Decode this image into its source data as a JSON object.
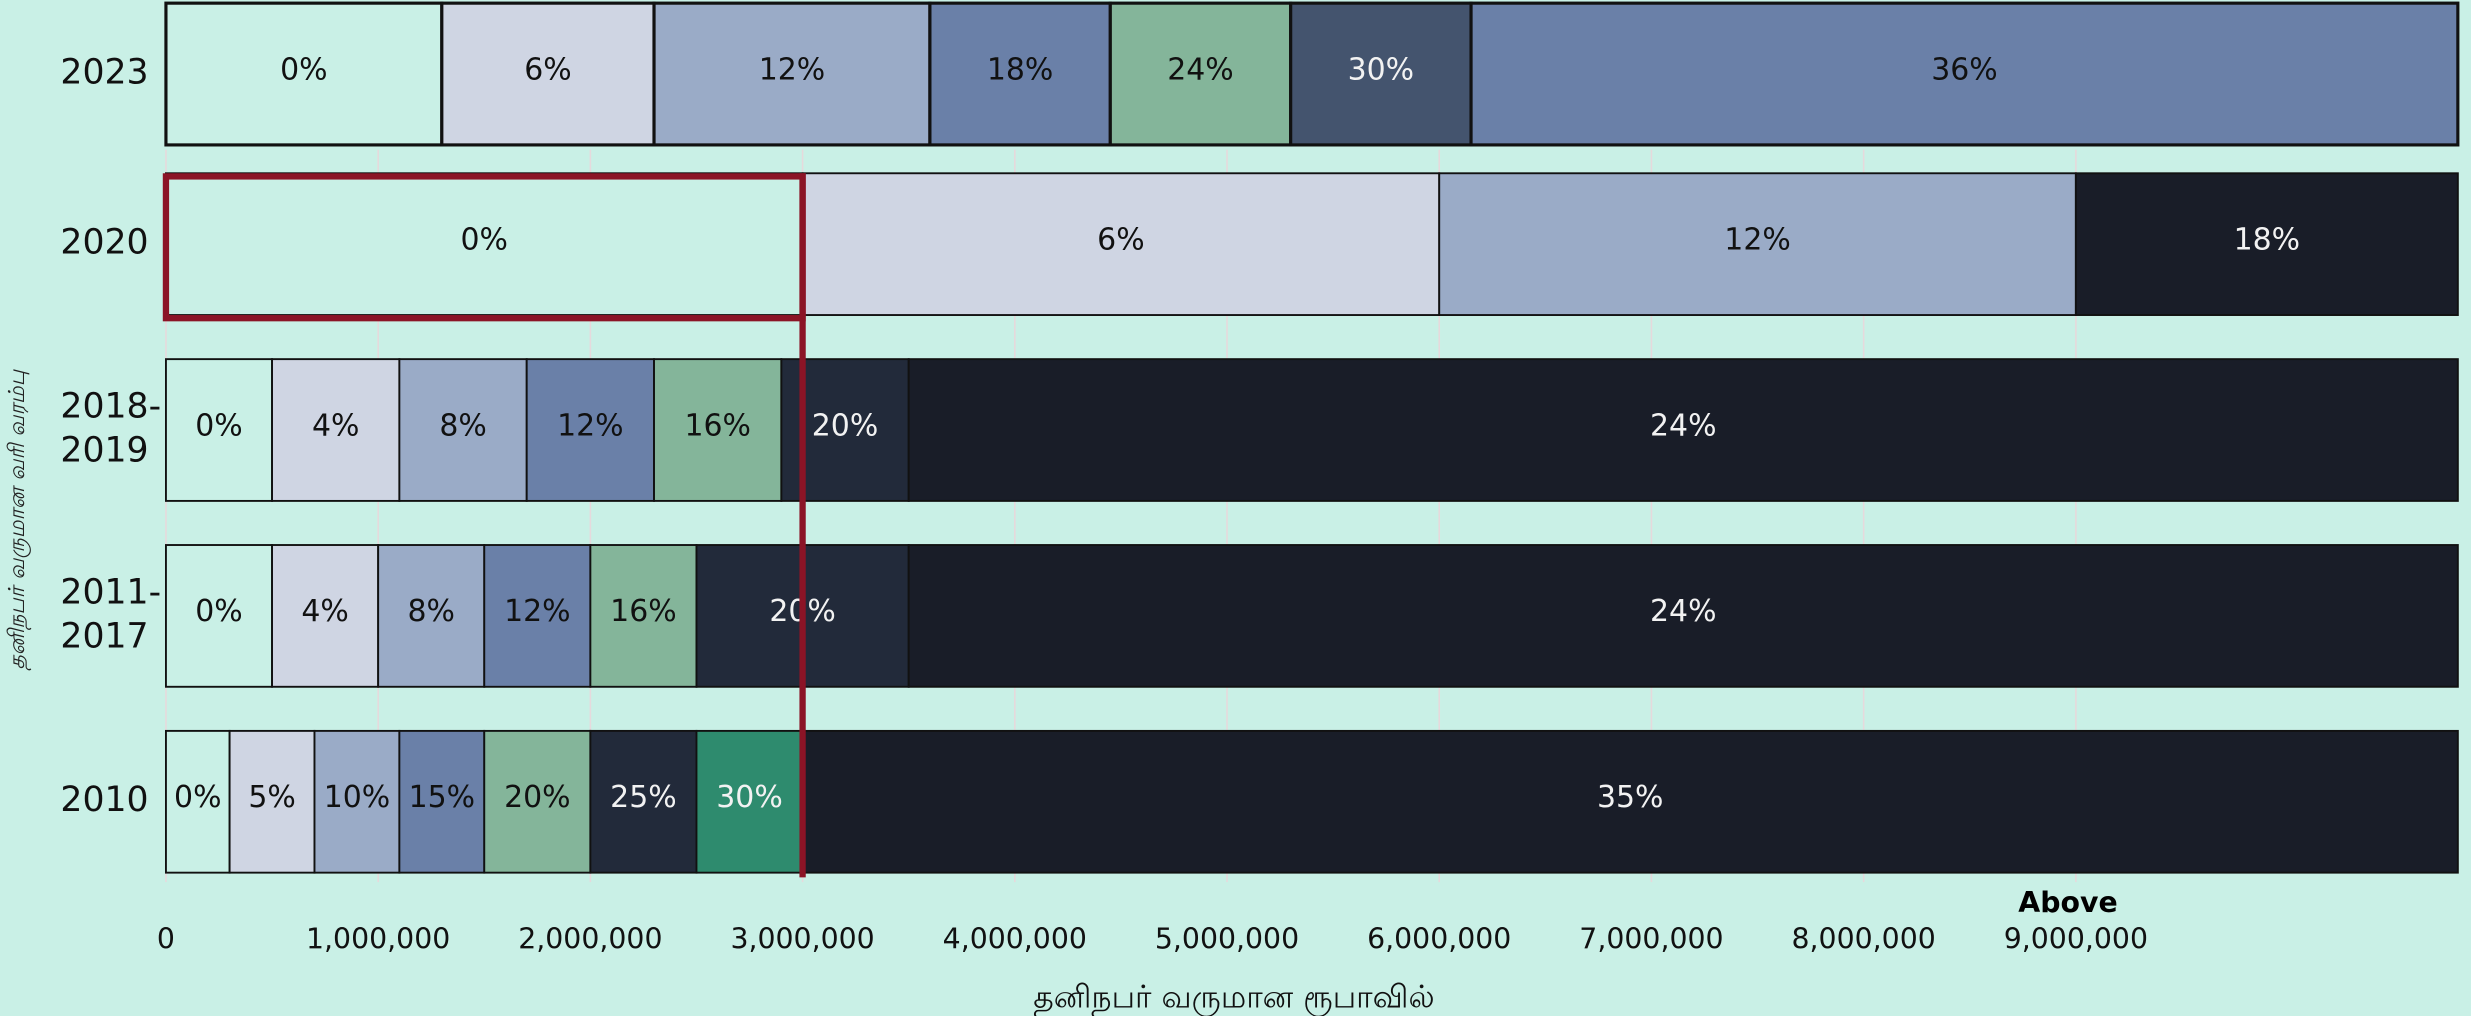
{
  "chart_data": {
    "type": "stacked_barh",
    "x_label": "தனிநபர் வருமான ரூபாவில்",
    "y_label": "தனிநபர் வருமான வரி வரம்பு",
    "categories": [
      "2023",
      "2020",
      "2018-2019",
      "2011-2017",
      "2010"
    ],
    "segments": [
      [
        {
          "label": "0%",
          "value": 1300000,
          "color": "#c9f0e6"
        },
        {
          "label": "6%",
          "value": 1000000,
          "color": "#cfd5e3"
        },
        {
          "label": "12%",
          "value": 1300000,
          "color": "#9aabc7"
        },
        {
          "label": "18%",
          "value": 850000,
          "color": "#6a80a8"
        },
        {
          "label": "24%",
          "value": 850000,
          "color": "#84b59a"
        },
        {
          "label": "30%",
          "value": 850000,
          "color": "#44546e"
        },
        {
          "label": "36%",
          "value": 4650000,
          "color": "#6a80a8"
        }
      ],
      [
        {
          "label": "0%",
          "value": 3000000,
          "color": "#c9f0e6"
        },
        {
          "label": "6%",
          "value": 3000000,
          "color": "#cfd5e3"
        },
        {
          "label": "12%",
          "value": 3000000,
          "color": "#9aabc7"
        },
        {
          "label": "18%",
          "value": 1800000,
          "color": "#191d28"
        }
      ],
      [
        {
          "label": "0%",
          "value": 500000,
          "color": "#c9f0e6"
        },
        {
          "label": "4%",
          "value": 600000,
          "color": "#cfd5e3"
        },
        {
          "label": "8%",
          "value": 600000,
          "color": "#9aabc7"
        },
        {
          "label": "12%",
          "value": 600000,
          "color": "#6a80a8"
        },
        {
          "label": "16%",
          "value": 600000,
          "color": "#84b59a"
        },
        {
          "label": "20%",
          "value": 600000,
          "color": "#222a3a"
        },
        {
          "label": "24%",
          "value": 7300000,
          "color": "#191d28"
        }
      ],
      [
        {
          "label": "0%",
          "value": 500000,
          "color": "#c9f0e6"
        },
        {
          "label": "4%",
          "value": 500000,
          "color": "#cfd5e3"
        },
        {
          "label": "8%",
          "value": 500000,
          "color": "#9aabc7"
        },
        {
          "label": "12%",
          "value": 500000,
          "color": "#6a80a8"
        },
        {
          "label": "16%",
          "value": 500000,
          "color": "#84b59a"
        },
        {
          "label": "20%",
          "value": 1000000,
          "color": "#222a3a"
        },
        {
          "label": "24%",
          "value": 7300000,
          "color": "#191d28"
        }
      ],
      [
        {
          "label": "0%",
          "value": 300000,
          "color": "#c9f0e6"
        },
        {
          "label": "5%",
          "value": 400000,
          "color": "#cfd5e3"
        },
        {
          "label": "10%",
          "value": 400000,
          "color": "#9aabc7"
        },
        {
          "label": "15%",
          "value": 400000,
          "color": "#6a80a8"
        },
        {
          "label": "20%",
          "value": 500000,
          "color": "#84b59a"
        },
        {
          "label": "25%",
          "value": 500000,
          "color": "#222a3a"
        },
        {
          "label": "30%",
          "value": 500000,
          "color": "#2e8b6e"
        },
        {
          "label": "35%",
          "value": 7800000,
          "color": "#191d28"
        }
      ]
    ],
    "xlim": [
      0,
      10800000
    ],
    "xticks": [
      0,
      {
        "value": 1000000,
        "label": "1,000,000"
      },
      {
        "value": 2000000,
        "label": "2,000,000"
      },
      {
        "value": 3000000,
        "label": "3,000,000"
      },
      {
        "value": 4000000,
        "label": "4,000,000"
      },
      {
        "value": 5000000,
        "label": "5,000,000"
      },
      {
        "value": 6000000,
        "label": "6,000,000"
      },
      {
        "value": 7000000,
        "label": "7,000,000"
      },
      {
        "value": 8000000,
        "label": "8,000,000"
      },
      {
        "value": 9000000,
        "label": "9,000,000"
      }
    ],
    "above_label": "Above",
    "highlight_x": 3000000,
    "highlight_color": "#8b1426",
    "grid": true
  }
}
